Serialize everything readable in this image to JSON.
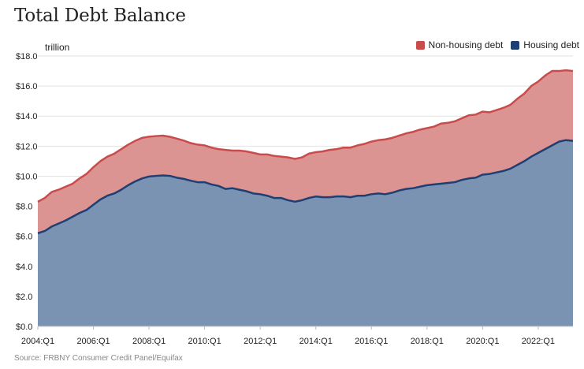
{
  "header": {
    "title": "Total Debt Balance",
    "unit": "trillion",
    "source": "Source: FRBNY Consumer Credit Panel/Equifax"
  },
  "legend": {
    "items": [
      {
        "label": "Non-housing debt",
        "color": "#c94b4b"
      },
      {
        "label": "Housing debt",
        "color": "#1f3f73"
      }
    ]
  },
  "colors": {
    "housing_fill": "#7a93b2",
    "housing_line": "#1f3f73",
    "nonhousing_fill": "#dc9492",
    "nonhousing_line": "#c94b4b",
    "grid": "#e2e2e2"
  },
  "chart_data": {
    "type": "area",
    "stacked": true,
    "title": "Total Debt Balance",
    "ylim": [
      0,
      18
    ],
    "y_ticks": [
      "$0.0",
      "$2.0",
      "$4.0",
      "$6.0",
      "$8.0",
      "$10.0",
      "$12.0",
      "$14.0",
      "$16.0",
      "$18.0"
    ],
    "x_ticks": [
      "2004:Q1",
      "2006:Q1",
      "2008:Q1",
      "2010:Q1",
      "2012:Q1",
      "2014:Q1",
      "2016:Q1",
      "2018:Q1",
      "2020:Q1",
      "2022:Q1"
    ],
    "grid": true,
    "legend_position": "top-right",
    "x": [
      "2004:Q1",
      "2004:Q2",
      "2004:Q3",
      "2004:Q4",
      "2005:Q1",
      "2005:Q2",
      "2005:Q3",
      "2005:Q4",
      "2006:Q1",
      "2006:Q2",
      "2006:Q3",
      "2006:Q4",
      "2007:Q1",
      "2007:Q2",
      "2007:Q3",
      "2007:Q4",
      "2008:Q1",
      "2008:Q2",
      "2008:Q3",
      "2008:Q4",
      "2009:Q1",
      "2009:Q2",
      "2009:Q3",
      "2009:Q4",
      "2010:Q1",
      "2010:Q2",
      "2010:Q3",
      "2010:Q4",
      "2011:Q1",
      "2011:Q2",
      "2011:Q3",
      "2011:Q4",
      "2012:Q1",
      "2012:Q2",
      "2012:Q3",
      "2012:Q4",
      "2013:Q1",
      "2013:Q2",
      "2013:Q3",
      "2013:Q4",
      "2014:Q1",
      "2014:Q2",
      "2014:Q3",
      "2014:Q4",
      "2015:Q1",
      "2015:Q2",
      "2015:Q3",
      "2015:Q4",
      "2016:Q1",
      "2016:Q2",
      "2016:Q3",
      "2016:Q4",
      "2017:Q1",
      "2017:Q2",
      "2017:Q3",
      "2017:Q4",
      "2018:Q1",
      "2018:Q2",
      "2018:Q3",
      "2018:Q4",
      "2019:Q1",
      "2019:Q2",
      "2019:Q3",
      "2019:Q4",
      "2020:Q1",
      "2020:Q2",
      "2020:Q3",
      "2020:Q4",
      "2021:Q1",
      "2021:Q2",
      "2021:Q3",
      "2021:Q4",
      "2022:Q1",
      "2022:Q2",
      "2022:Q3",
      "2022:Q4",
      "2023:Q1",
      "2023:Q2"
    ],
    "series": [
      {
        "name": "Housing debt",
        "values": [
          6.2,
          6.35,
          6.65,
          6.85,
          7.05,
          7.3,
          7.55,
          7.75,
          8.1,
          8.45,
          8.7,
          8.85,
          9.1,
          9.4,
          9.65,
          9.85,
          9.98,
          10.02,
          10.05,
          10.02,
          9.9,
          9.82,
          9.7,
          9.6,
          9.6,
          9.45,
          9.35,
          9.15,
          9.2,
          9.1,
          9.0,
          8.85,
          8.8,
          8.7,
          8.55,
          8.55,
          8.4,
          8.3,
          8.4,
          8.55,
          8.65,
          8.6,
          8.6,
          8.65,
          8.65,
          8.6,
          8.7,
          8.7,
          8.8,
          8.85,
          8.8,
          8.9,
          9.05,
          9.15,
          9.2,
          9.3,
          9.4,
          9.45,
          9.5,
          9.55,
          9.6,
          9.75,
          9.85,
          9.9,
          10.1,
          10.15,
          10.25,
          10.35,
          10.5,
          10.75,
          11.0,
          11.3,
          11.55,
          11.8,
          12.05,
          12.3,
          12.4,
          12.35
        ]
      },
      {
        "name": "Non-housing debt",
        "values": [
          2.1,
          2.2,
          2.3,
          2.25,
          2.25,
          2.2,
          2.3,
          2.4,
          2.5,
          2.55,
          2.6,
          2.65,
          2.7,
          2.7,
          2.7,
          2.7,
          2.65,
          2.65,
          2.65,
          2.6,
          2.6,
          2.55,
          2.5,
          2.5,
          2.45,
          2.45,
          2.45,
          2.6,
          2.5,
          2.6,
          2.65,
          2.7,
          2.65,
          2.75,
          2.8,
          2.75,
          2.85,
          2.85,
          2.85,
          2.95,
          2.95,
          3.05,
          3.15,
          3.15,
          3.25,
          3.3,
          3.35,
          3.45,
          3.5,
          3.55,
          3.65,
          3.65,
          3.65,
          3.7,
          3.75,
          3.8,
          3.8,
          3.85,
          4.0,
          4.0,
          4.05,
          4.1,
          4.2,
          4.2,
          4.2,
          4.1,
          4.15,
          4.2,
          4.25,
          4.4,
          4.5,
          4.7,
          4.75,
          4.9,
          4.95,
          4.7,
          4.65,
          4.65
        ]
      }
    ]
  }
}
